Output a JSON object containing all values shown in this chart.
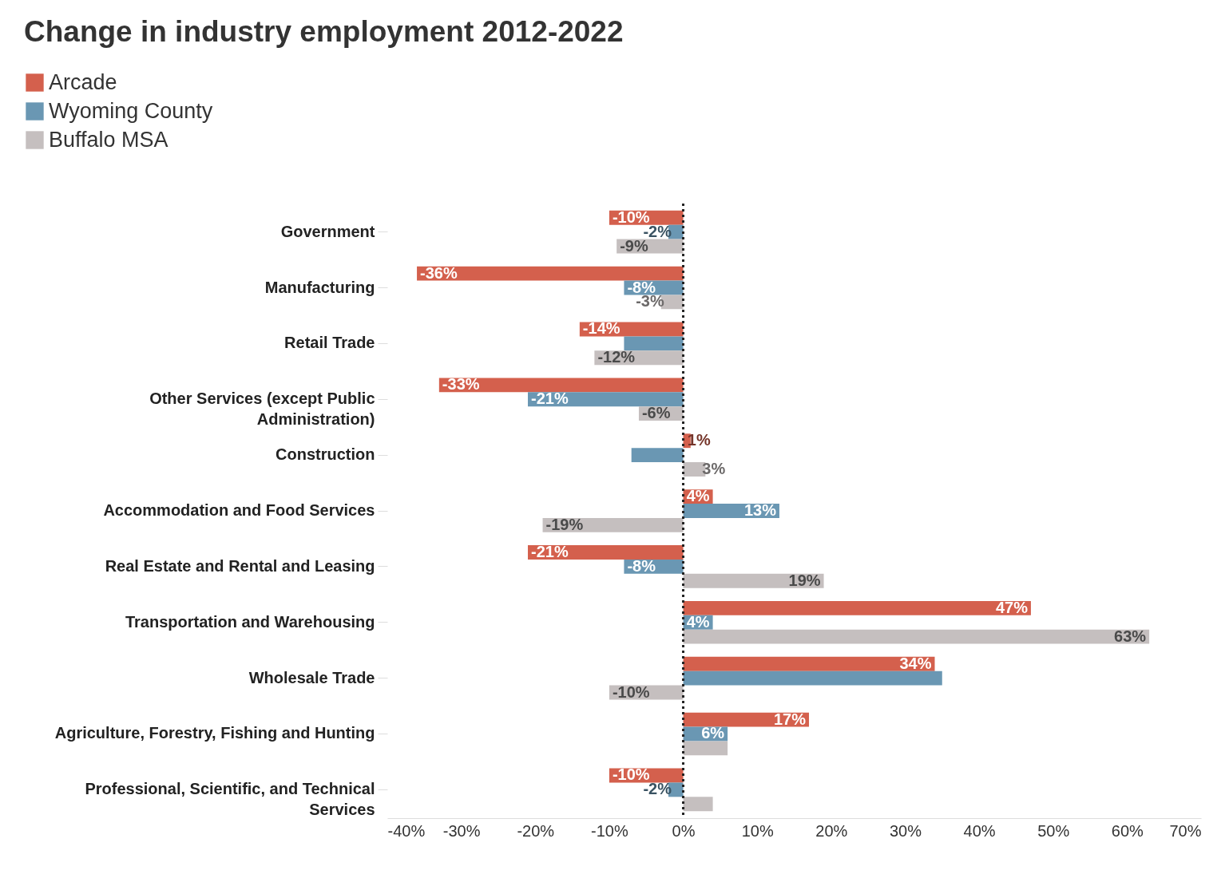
{
  "chart_data": {
    "type": "bar",
    "orientation": "horizontal",
    "title": "Change in industry employment 2012-2022",
    "categories": [
      "Government",
      "Manufacturing",
      "Retail Trade",
      "Other Services (except Public Administration)",
      "Construction",
      "Accommodation and Food Services",
      "Real Estate and Rental and Leasing",
      "Transportation and Warehousing",
      "Wholesale Trade",
      "Agriculture, Forestry, Fishing and Hunting",
      "Professional, Scientific, and Technical Services"
    ],
    "series": [
      {
        "name": "Arcade",
        "color": "#d4604d",
        "values": [
          -10,
          -36,
          -14,
          -33,
          1,
          4,
          -21,
          47,
          34,
          17,
          -10
        ],
        "value_labels": [
          "-10%",
          "-36%",
          "-14%",
          "-33%",
          "1%",
          "4%",
          "-21%",
          "47%",
          "34%",
          "17%",
          "-10%"
        ]
      },
      {
        "name": "Wyoming County",
        "color": "#6a97b3",
        "values": [
          -2,
          -8,
          -8,
          -21,
          -7,
          13,
          -8,
          4,
          35,
          6,
          -2
        ],
        "value_labels": [
          "-2%",
          "-8%",
          null,
          "-21%",
          null,
          "13%",
          "-8%",
          "4%",
          null,
          "6%",
          "-2%"
        ]
      },
      {
        "name": "Buffalo MSA",
        "color": "#c5bfbf",
        "values": [
          -9,
          -3,
          -12,
          -6,
          3,
          -19,
          19,
          63,
          -10,
          6,
          4
        ],
        "value_labels": [
          "-9%",
          "-3%",
          "-12%",
          "-6%",
          "3%",
          "-19%",
          "19%",
          "63%",
          "-10%",
          null,
          null
        ]
      }
    ],
    "xlim": [
      -40,
      70
    ],
    "xticks": [
      {
        "value": -40,
        "label": "-40%"
      },
      {
        "value": -30,
        "label": "-30%"
      },
      {
        "value": -20,
        "label": "-20%"
      },
      {
        "value": -10,
        "label": "-10%"
      },
      {
        "value": 0,
        "label": "0%"
      },
      {
        "value": 10,
        "label": "10%"
      },
      {
        "value": 20,
        "label": "20%"
      },
      {
        "value": 30,
        "label": "30%"
      },
      {
        "value": 40,
        "label": "40%"
      },
      {
        "value": 50,
        "label": "50%"
      },
      {
        "value": 60,
        "label": "60%"
      },
      {
        "value": 70,
        "label": "70%"
      }
    ],
    "ref_lines": [
      {
        "axis": "x",
        "value": 0,
        "color": "#222222",
        "line_style": "dotted"
      }
    ],
    "legend": "top left",
    "grid": false
  }
}
